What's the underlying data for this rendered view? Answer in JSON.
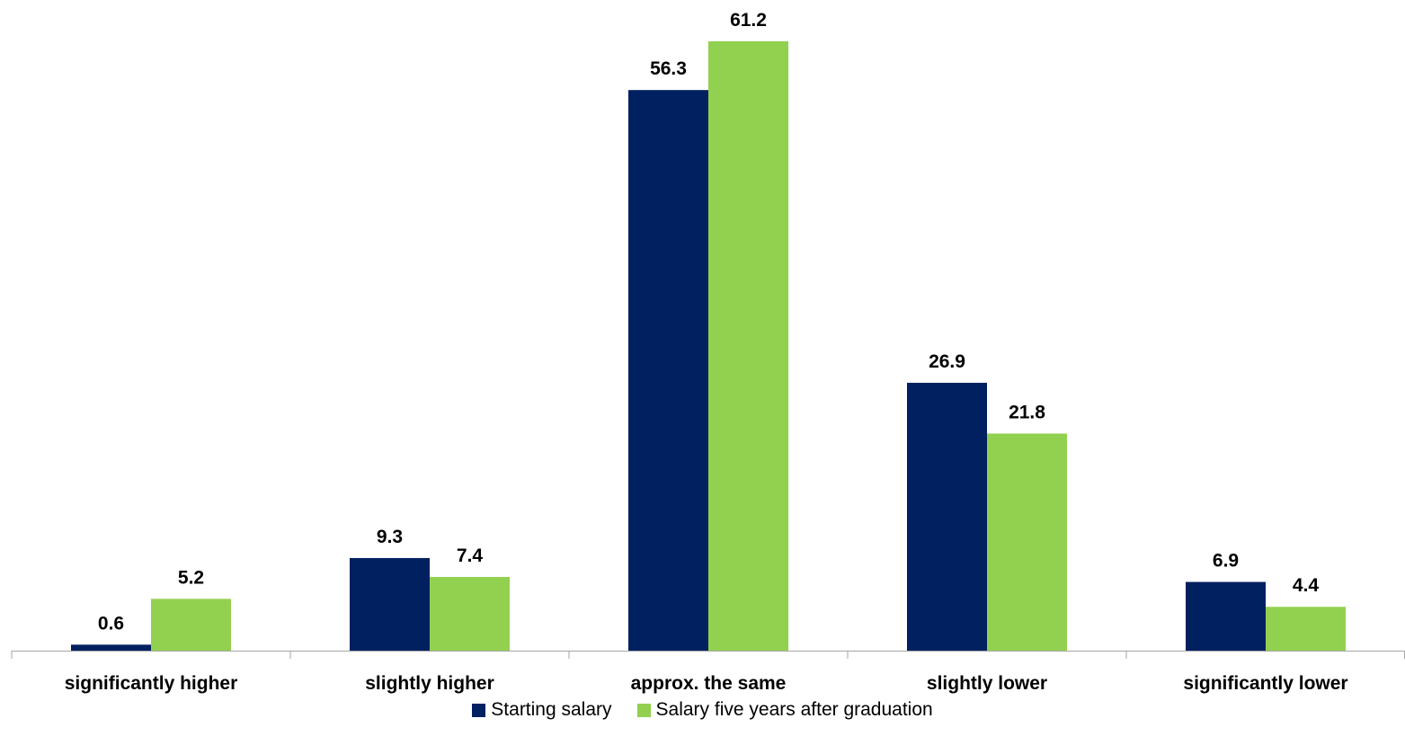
{
  "chart_data": {
    "type": "bar",
    "categories": [
      "significantly higher",
      "slightly higher",
      "approx. the same",
      "slightly lower",
      "significantly lower"
    ],
    "series": [
      {
        "name": "Starting salary",
        "color": "#002060",
        "values": [
          0.6,
          9.3,
          56.3,
          26.9,
          6.9
        ]
      },
      {
        "name": "Salary five years after graduation",
        "color": "#92D050",
        "values": [
          5.2,
          7.4,
          61.2,
          21.8,
          4.4
        ]
      }
    ],
    "title": "",
    "xlabel": "",
    "ylabel": "",
    "ylim": [
      0,
      65
    ],
    "grid": false,
    "legend_position": "bottom",
    "data_labels": true
  }
}
